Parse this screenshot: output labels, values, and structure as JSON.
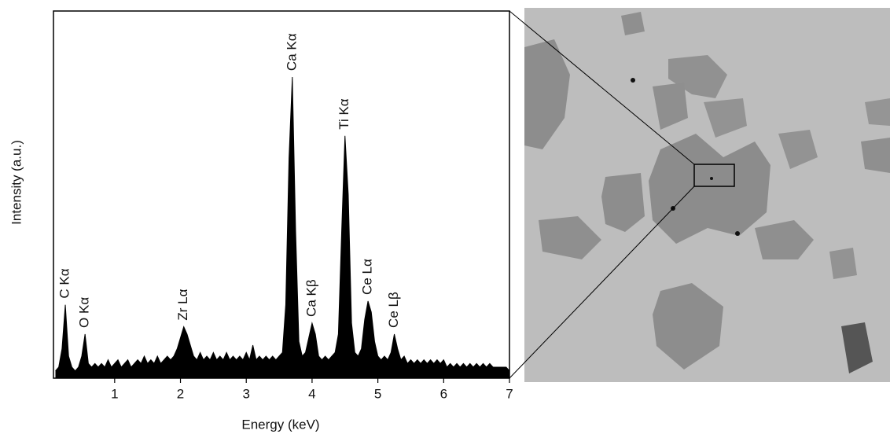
{
  "chart_data": {
    "type": "area",
    "x_label": "Energy (keV)",
    "y_label": "Intensity (a.u.)",
    "xlim": [
      0.07,
      7
    ],
    "xticks": [
      1,
      2,
      3,
      4,
      5,
      6,
      7
    ],
    "ylim": [
      0,
      100
    ],
    "color": "#000000",
    "x": [
      0.1,
      0.15,
      0.2,
      0.25,
      0.3,
      0.35,
      0.4,
      0.45,
      0.5,
      0.55,
      0.6,
      0.65,
      0.7,
      0.75,
      0.8,
      0.85,
      0.9,
      0.95,
      1.0,
      1.05,
      1.1,
      1.15,
      1.2,
      1.25,
      1.3,
      1.35,
      1.4,
      1.45,
      1.5,
      1.55,
      1.6,
      1.65,
      1.7,
      1.75,
      1.8,
      1.85,
      1.9,
      1.95,
      2.0,
      2.05,
      2.1,
      2.15,
      2.2,
      2.25,
      2.3,
      2.35,
      2.4,
      2.45,
      2.5,
      2.55,
      2.6,
      2.65,
      2.7,
      2.75,
      2.8,
      2.85,
      2.9,
      2.95,
      3.0,
      3.05,
      3.1,
      3.15,
      3.2,
      3.25,
      3.3,
      3.35,
      3.4,
      3.45,
      3.5,
      3.55,
      3.6,
      3.65,
      3.7,
      3.75,
      3.8,
      3.85,
      3.9,
      3.95,
      4.0,
      4.05,
      4.1,
      4.15,
      4.2,
      4.25,
      4.3,
      4.35,
      4.4,
      4.45,
      4.5,
      4.55,
      4.6,
      4.65,
      4.7,
      4.75,
      4.8,
      4.85,
      4.9,
      4.95,
      5.0,
      5.05,
      5.1,
      5.15,
      5.2,
      5.25,
      5.3,
      5.35,
      5.4,
      5.45,
      5.5,
      5.55,
      5.6,
      5.65,
      5.7,
      5.75,
      5.8,
      5.85,
      5.9,
      5.95,
      6.0,
      6.05,
      6.1,
      6.15,
      6.2,
      6.25,
      6.3,
      6.35,
      6.4,
      6.45,
      6.5,
      6.55,
      6.6,
      6.65,
      6.7,
      6.75,
      6.8,
      6.85,
      6.9,
      6.95,
      7.0
    ],
    "values": [
      2,
      3,
      8,
      20,
      6,
      3,
      2,
      3,
      6,
      12,
      4,
      3,
      4,
      3,
      4,
      3,
      5,
      3,
      4,
      5,
      3,
      4,
      5,
      3,
      4,
      5,
      4,
      6,
      4,
      5,
      4,
      6,
      4,
      5,
      6,
      5,
      6,
      8,
      11,
      14,
      12,
      9,
      6,
      5,
      7,
      5,
      6,
      5,
      7,
      5,
      6,
      5,
      7,
      5,
      6,
      5,
      6,
      5,
      7,
      5,
      9,
      5,
      6,
      5,
      6,
      5,
      6,
      5,
      6,
      7,
      20,
      60,
      82,
      40,
      10,
      6,
      7,
      11,
      15,
      12,
      6,
      5,
      6,
      5,
      6,
      7,
      12,
      40,
      66,
      50,
      15,
      7,
      6,
      8,
      16,
      21,
      18,
      10,
      6,
      5,
      6,
      5,
      7,
      12,
      8,
      5,
      6,
      4,
      5,
      4,
      5,
      4,
      5,
      4,
      5,
      4,
      5,
      4,
      5,
      3,
      4,
      3,
      4,
      3,
      4,
      3,
      4,
      3,
      4,
      3,
      4,
      3,
      4,
      3,
      3,
      3,
      3,
      3,
      2
    ],
    "annotations": [
      {
        "text": "C Kα",
        "x": 0.25
      },
      {
        "text": "O Kα",
        "x": 0.55
      },
      {
        "text": "Zr Lα",
        "x": 2.05
      },
      {
        "text": "Ca Kα",
        "x": 3.7
      },
      {
        "text": "Ca Kβ",
        "x": 4.0
      },
      {
        "text": "Ti Kα",
        "x": 4.5
      },
      {
        "text": "Ce Lα",
        "x": 4.85
      },
      {
        "text": "Ce Lβ",
        "x": 5.25
      }
    ]
  }
}
